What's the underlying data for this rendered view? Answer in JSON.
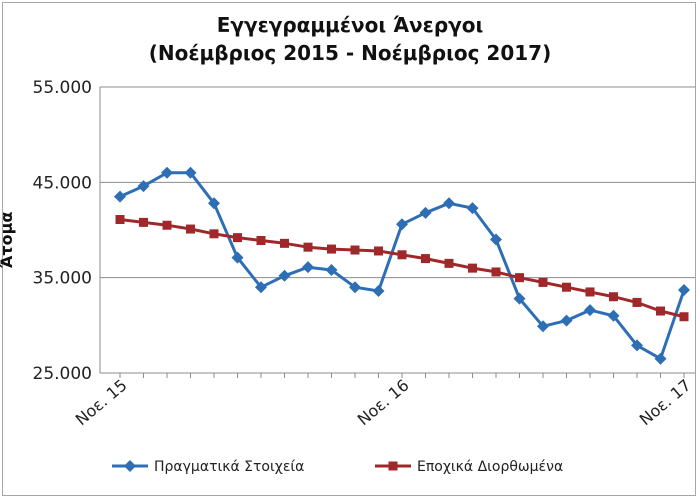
{
  "chart_data": {
    "type": "line",
    "title": "Εγγεγραμμένοι Άνεργοι",
    "subtitle": "(Νοέμβριος 2015 - Νοέμβριος 2017)",
    "ylabel": "Άτομα",
    "xlabel": "",
    "ylim": [
      25000,
      55000
    ],
    "y_ticks": [
      "25.000",
      "35.000",
      "45.000",
      "55.000"
    ],
    "y_tick_values": [
      25000,
      35000,
      45000,
      55000
    ],
    "x_tick_labels": [
      {
        "index": 0,
        "label": "Νοε. 15"
      },
      {
        "index": 12,
        "label": "Νοε. 16"
      },
      {
        "index": 24,
        "label": "Νοε. 17"
      }
    ],
    "x_count": 25,
    "grid": true,
    "legend_position": "bottom",
    "series": [
      {
        "name": "Πραγματικά Στοιχεία",
        "color": "#2e6eb5",
        "marker": "diamond",
        "values": [
          43500,
          44600,
          46000,
          46000,
          42800,
          37100,
          34000,
          35200,
          36100,
          35800,
          34000,
          33600,
          40600,
          41800,
          42800,
          42300,
          39000,
          32800,
          29900,
          30500,
          31600,
          31000,
          27900,
          26500,
          33700
        ]
      },
      {
        "name": "Εποχικά Διορθωμένα",
        "color": "#a0282a",
        "marker": "square",
        "values": [
          41100,
          40800,
          40500,
          40100,
          39600,
          39200,
          38900,
          38600,
          38200,
          38000,
          37900,
          37800,
          37400,
          37000,
          36500,
          36000,
          35600,
          35000,
          34500,
          34000,
          33500,
          33000,
          32400,
          31500,
          30900
        ]
      }
    ]
  }
}
